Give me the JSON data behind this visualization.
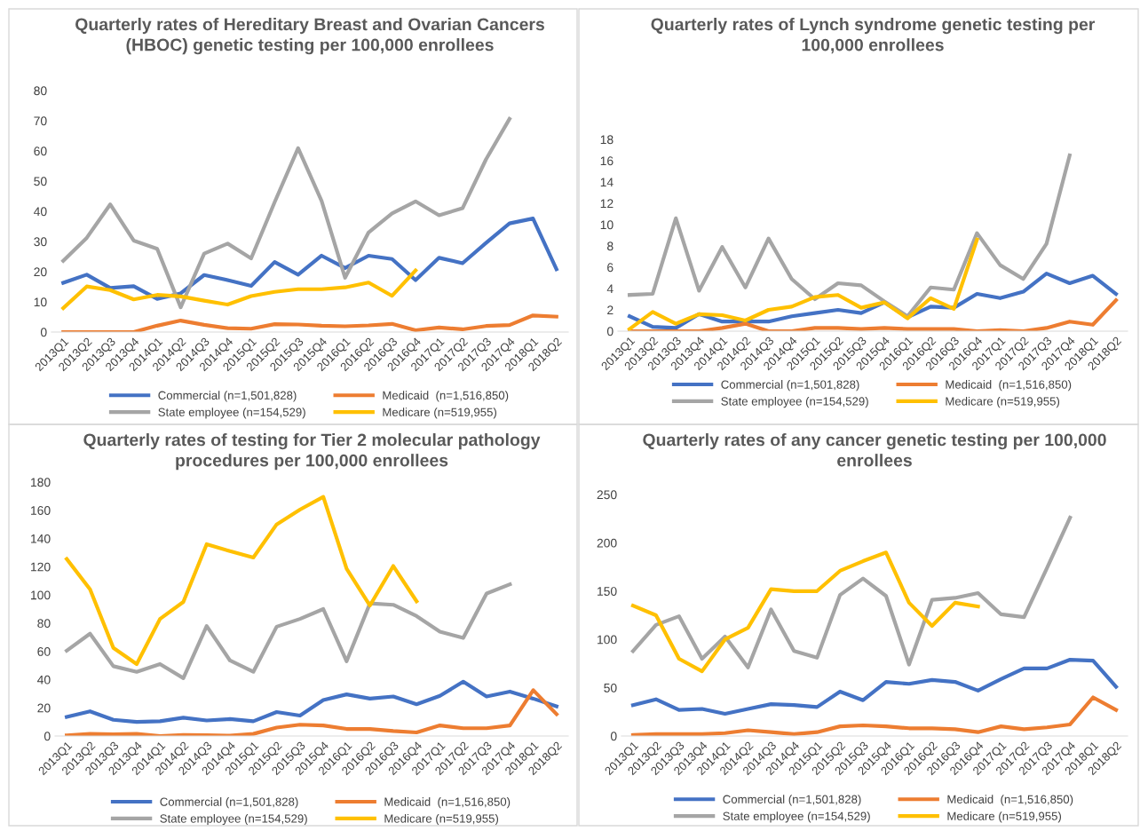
{
  "chart_data": [
    {
      "type": "line",
      "title": "Quarterly rates of Hereditary Breast and Ovarian Cancers\n(HBOC) genetic testing per 100,000 enrollees",
      "categories": [
        "2013Q1",
        "2013Q2",
        "2013Q3",
        "2013Q4",
        "2014Q1",
        "2014Q2",
        "2014Q3",
        "2014Q4",
        "2015Q1",
        "2015Q2",
        "2015Q3",
        "2015Q4",
        "2016Q1",
        "2016Q2",
        "2016Q3",
        "2016Q4",
        "2017Q1",
        "2017Q2",
        "2017Q3",
        "2017Q4",
        "2018Q1",
        "2018Q2"
      ],
      "ylim": [
        0,
        80
      ],
      "yticks": [
        0,
        10,
        20,
        30,
        40,
        50,
        60,
        70,
        80
      ],
      "grid": false,
      "legend": "bottom",
      "marker": "none",
      "series": [
        {
          "name": "Commercial (n=1,501,828)",
          "color": "#4472c4",
          "values": [
            16.3,
            19,
            14.6,
            15.2,
            11,
            12.8,
            18.9,
            17.2,
            15.3,
            23.2,
            19,
            25.3,
            21.2,
            25.3,
            24.2,
            17.2,
            24.6,
            22.8,
            29.5,
            36,
            37.6,
            20.8
          ]
        },
        {
          "name": "Medicaid  (n=1,516,850)",
          "color": "#ed7d31",
          "values": [
            0,
            0,
            0,
            0,
            2.1,
            3.8,
            2.4,
            1.3,
            1.1,
            2.6,
            2.5,
            2.1,
            1.9,
            2.2,
            2.7,
            0.6,
            1.5,
            0.9,
            2,
            2.3,
            5.5,
            5.1
          ]
        },
        {
          "name": "State employee (n=154,529)",
          "color": "#a5a5a5",
          "values": [
            23.6,
            31.2,
            42.3,
            30.3,
            27.6,
            8.2,
            26,
            29.3,
            24.4,
            43,
            60.9,
            43.4,
            18,
            33,
            39.3,
            43.3,
            38.7,
            41,
            57.2,
            70.6,
            null,
            null
          ]
        },
        {
          "name": "Medicare (n=519,955)",
          "color": "#ffc000",
          "values": [
            7.9,
            15.1,
            13.9,
            10.8,
            12.3,
            11.8,
            10.4,
            9.1,
            11.9,
            13.3,
            14.2,
            14.2,
            14.8,
            16.4,
            12,
            20.4,
            null,
            null,
            null,
            null,
            null,
            null
          ]
        }
      ]
    },
    {
      "type": "line",
      "title": "Quarterly rates of Lynch syndrome genetic testing per\n100,000 enrollees",
      "categories": [
        "2013Q1",
        "2013Q2",
        "2013Q3",
        "2013Q4",
        "2014Q1",
        "2014Q2",
        "2014Q3",
        "2014Q4",
        "2015Q1",
        "2015Q2",
        "2015Q3",
        "2015Q4",
        "2016Q1",
        "2016Q2",
        "2016Q3",
        "2016Q4",
        "2017Q1",
        "2017Q2",
        "2017Q3",
        "2017Q4",
        "2018Q1",
        "2018Q2"
      ],
      "ylim": [
        0,
        18
      ],
      "yticks": [
        0,
        2,
        4,
        6,
        8,
        10,
        12,
        14,
        16,
        18
      ],
      "grid": false,
      "legend": "bottom",
      "marker": "none",
      "series": [
        {
          "name": "Commercial (n=1,501,828)",
          "color": "#4472c4",
          "values": [
            1.4,
            0.4,
            0.3,
            1.6,
            0.9,
            0.9,
            0.9,
            1.4,
            1.7,
            2,
            1.7,
            2.7,
            1.3,
            2.3,
            2.2,
            3.5,
            3.1,
            3.7,
            5.4,
            4.5,
            5.2,
            3.5
          ]
        },
        {
          "name": "Medicaid  (n=1,516,850)",
          "color": "#ed7d31",
          "values": [
            0,
            0,
            0,
            0,
            0.3,
            0.7,
            0,
            0,
            0.3,
            0.3,
            0.2,
            0.3,
            0.2,
            0.2,
            0.2,
            0,
            0.1,
            0,
            0.3,
            0.9,
            0.6,
            2.9
          ]
        },
        {
          "name": "State employee (n=154,529)",
          "color": "#a5a5a5",
          "values": [
            3.4,
            3.5,
            10.6,
            3.8,
            7.9,
            4.1,
            8.7,
            4.9,
            3.0,
            4.5,
            4.3,
            2.8,
            1.4,
            4.1,
            3.9,
            9.2,
            6.2,
            4.9,
            8.2,
            16.5,
            null,
            null
          ]
        },
        {
          "name": "Medicare (n=519,955)",
          "color": "#ffc000",
          "values": [
            0.2,
            1.8,
            0.7,
            1.6,
            1.5,
            1.0,
            2.0,
            2.3,
            3.2,
            3.4,
            2.2,
            2.7,
            1.2,
            3.1,
            2.1,
            8.6,
            null,
            null,
            null,
            null,
            null,
            null
          ]
        }
      ]
    },
    {
      "type": "line",
      "title": "Quarterly rates of testing for Tier 2 molecular pathology\nprocedures per 100,000 enrollees",
      "categories": [
        "2013Q1",
        "2013Q2",
        "2013Q3",
        "2013Q4",
        "2014Q1",
        "2014Q2",
        "2014Q3",
        "2014Q4",
        "2015Q1",
        "2015Q2",
        "2015Q3",
        "2015Q4",
        "2016Q1",
        "2016Q2",
        "2016Q3",
        "2016Q4",
        "2017Q1",
        "2017Q2",
        "2017Q3",
        "2017Q4",
        "2018Q1",
        "2018Q2"
      ],
      "ylim": [
        0,
        180
      ],
      "yticks": [
        0,
        20,
        40,
        60,
        80,
        100,
        120,
        140,
        160,
        180
      ],
      "grid": false,
      "legend": "bottom",
      "marker": "none",
      "series": [
        {
          "name": "Commercial (n=1,501,828)",
          "color": "#4472c4",
          "values": [
            13.5,
            17.5,
            11.5,
            10,
            10.5,
            13,
            11,
            12,
            10.5,
            17,
            14.5,
            25.5,
            29.5,
            26.5,
            28,
            22.5,
            28.5,
            38.5,
            28,
            31.5,
            26.5,
            21
          ]
        },
        {
          "name": "Medicaid  (n=1,516,850)",
          "color": "#ed7d31",
          "values": [
            0.5,
            1.5,
            1.2,
            1.5,
            0,
            0.8,
            0.5,
            0.3,
            1.5,
            6,
            8,
            7.5,
            5,
            5,
            3.5,
            2.5,
            7.5,
            5.5,
            5.5,
            7.5,
            32.5,
            15.5
          ]
        },
        {
          "name": "State employee (n=154,529)",
          "color": "#a5a5a5",
          "values": [
            60.5,
            72.5,
            49.5,
            45.5,
            51,
            41,
            78,
            53.5,
            45.5,
            77.5,
            83,
            90,
            53,
            94,
            93,
            85,
            74,
            69.5,
            101,
            107.5,
            null,
            null
          ]
        },
        {
          "name": "Medicare (n=519,955)",
          "color": "#ffc000",
          "values": [
            125.5,
            104,
            62.5,
            51,
            83,
            95,
            136,
            131,
            126.5,
            150,
            160.5,
            169.5,
            118.5,
            92.5,
            120.5,
            95.5,
            null,
            null,
            null,
            null,
            null,
            null
          ]
        }
      ]
    },
    {
      "type": "line",
      "title": "Quarterly rates of any cancer genetic testing per 100,000\nenrollees",
      "categories": [
        "2013Q1",
        "2013Q2",
        "2013Q3",
        "2013Q4",
        "2014Q1",
        "2014Q2",
        "2014Q3",
        "2014Q4",
        "2015Q1",
        "2015Q2",
        "2015Q3",
        "2015Q4",
        "2016Q1",
        "2016Q2",
        "2016Q3",
        "2016Q4",
        "2017Q1",
        "2017Q2",
        "2017Q3",
        "2017Q4",
        "2018Q1",
        "2018Q2"
      ],
      "ylim": [
        0,
        250
      ],
      "yticks": [
        0,
        50,
        100,
        150,
        200,
        250
      ],
      "grid": false,
      "legend": "bottom",
      "marker": "none",
      "series": [
        {
          "name": "Commercial (n=1,501,828)",
          "color": "#4472c4",
          "values": [
            32,
            38,
            27,
            28,
            23,
            28,
            33,
            32,
            30,
            46,
            37,
            56,
            54,
            58,
            56,
            47,
            59,
            70,
            70,
            79,
            78,
            51
          ]
        },
        {
          "name": "Medicaid  (n=1,516,850)",
          "color": "#ed7d31",
          "values": [
            1,
            2,
            2,
            2,
            3,
            6,
            4,
            2,
            4,
            10,
            11,
            10,
            8,
            8,
            7,
            4,
            10,
            7,
            9,
            12,
            40,
            27
          ]
        },
        {
          "name": "State employee (n=154,529)",
          "color": "#a5a5a5",
          "values": [
            88,
            115,
            124,
            80,
            103,
            71,
            131,
            88,
            81,
            146,
            163,
            145,
            74,
            141,
            143,
            148,
            126,
            123,
            174,
            226,
            null,
            null
          ]
        },
        {
          "name": "Medicare (n=519,955)",
          "color": "#ffc000",
          "values": [
            135,
            125,
            80,
            67,
            100,
            112,
            152,
            150,
            150,
            171,
            181,
            190,
            138,
            114,
            138,
            134,
            null,
            null,
            null,
            null,
            null,
            null
          ]
        }
      ]
    }
  ]
}
